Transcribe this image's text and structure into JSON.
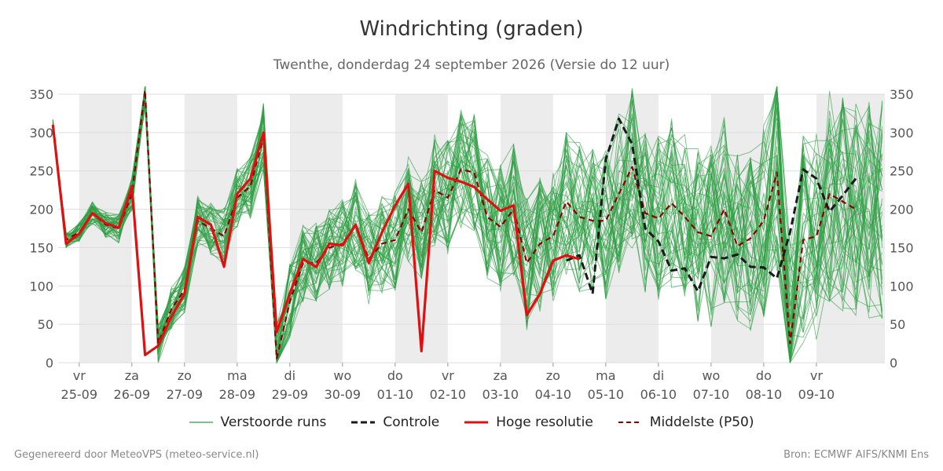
{
  "title": "Windrichting (graden)",
  "subtitle": "Twenthe, donderdag 24 september 2026 (Versie do 12 uur)",
  "legend": {
    "ensemble": "Verstoorde runs",
    "control": "Controle",
    "hires": "Hoge resolutie",
    "median": "Middelste (P50)"
  },
  "footer": {
    "left": "Gegenereerd door MeteoVPS (meteo-service.nl)",
    "right": "Bron: ECMWF AIFS/KNMI Ens"
  },
  "colors": {
    "ensemble": "#2e9e44",
    "control": "#1a1a1a",
    "hires": "#e01010",
    "median": "#8b0000",
    "night_band": "#ececec",
    "grid": "#dddddd"
  },
  "chart_data": {
    "type": "line",
    "x_unit": "days since 24-09 00:00",
    "xlim": [
      24.6,
      40.3
    ],
    "ylim": [
      0,
      350
    ],
    "yticks": [
      0,
      50,
      100,
      150,
      200,
      250,
      300,
      350
    ],
    "grid": "horizontal",
    "legend_position": "bottom",
    "ticks": [
      {
        "day": "vr",
        "date": "25-09",
        "x": 25
      },
      {
        "day": "za",
        "date": "26-09",
        "x": 26
      },
      {
        "day": "zo",
        "date": "27-09",
        "x": 27
      },
      {
        "day": "ma",
        "date": "28-09",
        "x": 28
      },
      {
        "day": "di",
        "date": "29-09",
        "x": 29
      },
      {
        "day": "wo",
        "date": "30-09",
        "x": 30
      },
      {
        "day": "do",
        "date": "01-10",
        "x": 31
      },
      {
        "day": "vr",
        "date": "02-10",
        "x": 32
      },
      {
        "day": "za",
        "date": "03-10",
        "x": 33
      },
      {
        "day": "zo",
        "date": "04-10",
        "x": 34
      },
      {
        "day": "ma",
        "date": "05-10",
        "x": 35
      },
      {
        "day": "di",
        "date": "06-10",
        "x": 36
      },
      {
        "day": "wo",
        "date": "07-10",
        "x": 37
      },
      {
        "day": "do",
        "date": "08-10",
        "x": 38
      },
      {
        "day": "vr",
        "date": "09-10",
        "x": 39
      }
    ],
    "shaded_bands": [
      [
        25,
        26
      ],
      [
        27,
        28
      ],
      [
        29,
        30
      ],
      [
        31,
        32
      ],
      [
        33,
        34
      ],
      [
        35,
        36
      ],
      [
        37,
        38
      ],
      [
        39,
        40.3
      ]
    ],
    "series": [
      {
        "name": "Hoge resolutie",
        "x": [
          24.5,
          24.75,
          25,
          25.25,
          25.5,
          25.75,
          26,
          26.25,
          26.5,
          26.75,
          27,
          27.25,
          27.5,
          27.75,
          28,
          28.25,
          28.5,
          28.75,
          29,
          29.25,
          29.5,
          29.75,
          30,
          30.25,
          30.5,
          30.75,
          31,
          31.25,
          31.5,
          31.75,
          32,
          32.25,
          32.5,
          32.75,
          33,
          33.25,
          33.5,
          33.75,
          34,
          34.25,
          34.5
        ],
        "values": [
          310,
          155,
          168,
          195,
          182,
          176,
          230,
          10,
          22,
          60,
          90,
          190,
          180,
          125,
          220,
          240,
          300,
          40,
          90,
          135,
          125,
          155,
          153,
          180,
          130,
          170,
          205,
          233,
          15,
          250,
          241,
          236,
          229,
          213,
          198,
          205,
          62,
          90,
          133,
          140,
          135
        ]
      },
      {
        "name": "Controle",
        "x": [
          34.25,
          34.5,
          34.75,
          35,
          35.25,
          35.5,
          35.75,
          36,
          36.25,
          36.5,
          36.75,
          37,
          37.25,
          37.5,
          37.75,
          38,
          38.25,
          38.5,
          38.75,
          39,
          39.25,
          39.5,
          39.75
        ],
        "values": [
          133,
          140,
          90,
          265,
          318,
          285,
          175,
          158,
          120,
          123,
          93,
          138,
          136,
          141,
          125,
          124,
          110,
          170,
          252,
          240,
          197,
          218,
          240
        ]
      },
      {
        "name": "Middelste (P50)",
        "x": [
          24.5,
          24.75,
          25,
          25.25,
          25.5,
          25.75,
          26,
          26.25,
          26.5,
          26.75,
          27,
          27.25,
          27.5,
          27.75,
          28,
          28.25,
          28.5,
          28.75,
          29,
          29.25,
          29.5,
          29.75,
          30,
          30.25,
          30.5,
          30.75,
          31,
          31.25,
          31.5,
          31.75,
          32,
          32.25,
          32.5,
          32.75,
          33,
          33.25,
          33.5,
          33.75,
          34,
          34.25,
          34.5,
          34.75,
          35,
          35.25,
          35.5,
          35.75,
          36,
          36.25,
          36.5,
          36.75,
          37,
          37.25,
          37.5,
          37.75,
          38,
          38.25,
          38.5,
          38.75,
          39,
          39.25,
          39.5,
          39.75
        ],
        "values": [
          310,
          160,
          170,
          195,
          180,
          175,
          220,
          355,
          25,
          70,
          95,
          185,
          175,
          165,
          215,
          230,
          295,
          5,
          80,
          130,
          130,
          150,
          155,
          180,
          135,
          155,
          160,
          200,
          170,
          225,
          215,
          252,
          248,
          190,
          177,
          200,
          130,
          155,
          165,
          210,
          190,
          185,
          185,
          220,
          255,
          195,
          188,
          208,
          190,
          170,
          165,
          200,
          152,
          162,
          185,
          248,
          25,
          160,
          165,
          220,
          210,
          200
        ]
      }
    ]
  }
}
